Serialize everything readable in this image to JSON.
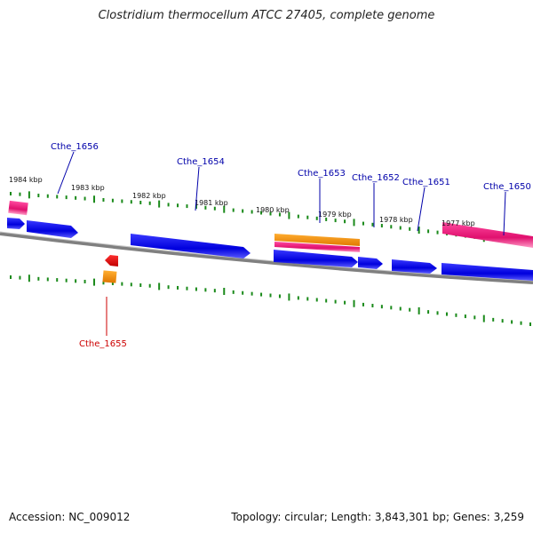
{
  "title": "Clostridium thermocellum ATCC 27405, complete genome",
  "accession": {
    "label": "Accession:",
    "value": "NC_009012"
  },
  "topology": {
    "label": "Topology:",
    "value": "circular"
  },
  "length": {
    "label": "Length:",
    "value": "3,843,301 bp"
  },
  "genes": {
    "label": "Genes:",
    "value": "3,259"
  },
  "scale_unit": "kbp",
  "colors": {
    "forward_gene": "#0a0ae0",
    "reverse_gene": "#e00000",
    "pink_feature": "#e8187a",
    "orange_feature": "#f08c00",
    "backbone": "#808080",
    "tick": "#1a8a1a",
    "label_forward": "#0000aa",
    "label_reverse": "#cc0000"
  },
  "ticks": [
    {
      "kbp": 1984,
      "label": "1984 kbp"
    },
    {
      "kbp": 1983,
      "label": "1983 kbp"
    },
    {
      "kbp": 1982,
      "label": "1982 kbp"
    },
    {
      "kbp": 1981,
      "label": "1981 kbp"
    },
    {
      "kbp": 1980,
      "label": "1980 kbp"
    },
    {
      "kbp": 1979,
      "label": "1979 kbp"
    },
    {
      "kbp": 1978,
      "label": "1978 kbp"
    },
    {
      "kbp": 1977,
      "label": "1977 kbp"
    }
  ],
  "gene_labels": [
    {
      "name": "Cthe_1656",
      "strand": "forward"
    },
    {
      "name": "Cthe_1655",
      "strand": "reverse"
    },
    {
      "name": "Cthe_1654",
      "strand": "forward"
    },
    {
      "name": "Cthe_1653",
      "strand": "forward"
    },
    {
      "name": "Cthe_1652",
      "strand": "forward"
    },
    {
      "name": "Cthe_1651",
      "strand": "forward"
    },
    {
      "name": "Cthe_1650",
      "strand": "forward"
    }
  ]
}
